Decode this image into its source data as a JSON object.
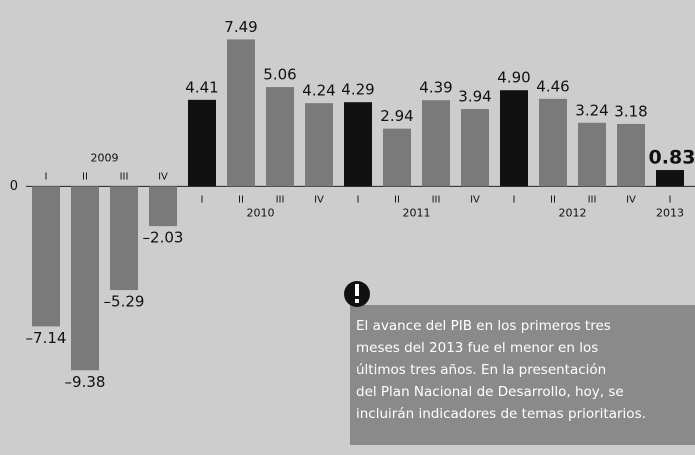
{
  "chart_data": {
    "type": "bar",
    "categories": [
      "I",
      "II",
      "III",
      "IV",
      "I",
      "II",
      "III",
      "IV",
      "I",
      "II",
      "III",
      "IV",
      "I",
      "II",
      "III",
      "IV",
      "I"
    ],
    "years": [
      "2009",
      "2010",
      "2011",
      "2012",
      "2013"
    ],
    "values": [
      -7.14,
      -9.38,
      -5.29,
      -2.03,
      4.41,
      7.49,
      5.06,
      4.24,
      4.29,
      2.94,
      4.39,
      3.94,
      4.9,
      4.46,
      3.24,
      3.18,
      0.83
    ],
    "value_labels": [
      "–7.14",
      "–9.38",
      "–5.29",
      "–2.03",
      "4.41",
      "7.49",
      "5.06",
      "4.24",
      "4.29",
      "2.94",
      "4.39",
      "3.94",
      "4.90",
      "4.46",
      "3.24",
      "3.18",
      "0.83"
    ],
    "colors": [
      "#7a7a7a",
      "#7a7a7a",
      "#7a7a7a",
      "#7a7a7a",
      "#111111",
      "#7a7a7a",
      "#7a7a7a",
      "#7a7a7a",
      "#111111",
      "#7a7a7a",
      "#7a7a7a",
      "#7a7a7a",
      "#111111",
      "#7a7a7a",
      "#7a7a7a",
      "#7a7a7a",
      "#111111"
    ],
    "ylim": [
      -13.7,
      9.5
    ],
    "yticks": [
      0
    ],
    "annotation": [
      "El avance del PIB en los primeros tres",
      "meses del 2013 fue el menor en los",
      "últimos tres años. En la presentación",
      "del Plan Nacional de Desarrollo, hoy, se",
      "incluirán indicadores de temas prioritarios."
    ]
  }
}
